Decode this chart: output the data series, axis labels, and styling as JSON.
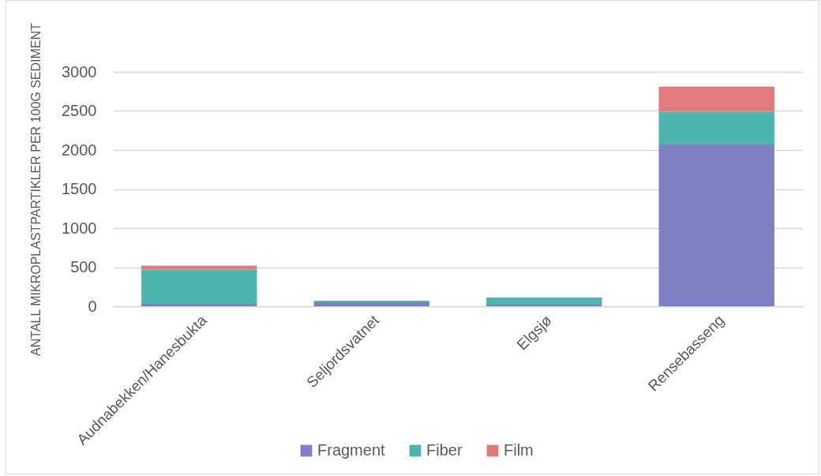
{
  "chart_data": {
    "type": "bar",
    "stacked": true,
    "categories": [
      "Audnabekken/Hanesbukta",
      "Seljordsvatnet",
      "Elgsjø",
      "Rensebasseng"
    ],
    "series": [
      {
        "name": "Fragment",
        "color": "#7f80c4",
        "values": [
          30,
          50,
          20,
          2070
        ]
      },
      {
        "name": "Fiber",
        "color": "#4db5ab",
        "values": [
          440,
          20,
          90,
          420
        ]
      },
      {
        "name": "Film",
        "color": "#e07a7d",
        "values": [
          50,
          0,
          0,
          320
        ]
      }
    ],
    "ylabel": "ANTALL MIKROPLASTPARTIKLER PER 100G SEDIMENT",
    "ylim": [
      0,
      3000
    ],
    "yticks": [
      0,
      500,
      1000,
      1500,
      2000,
      2500,
      3000
    ],
    "grid": "y",
    "legend": "bottom"
  }
}
